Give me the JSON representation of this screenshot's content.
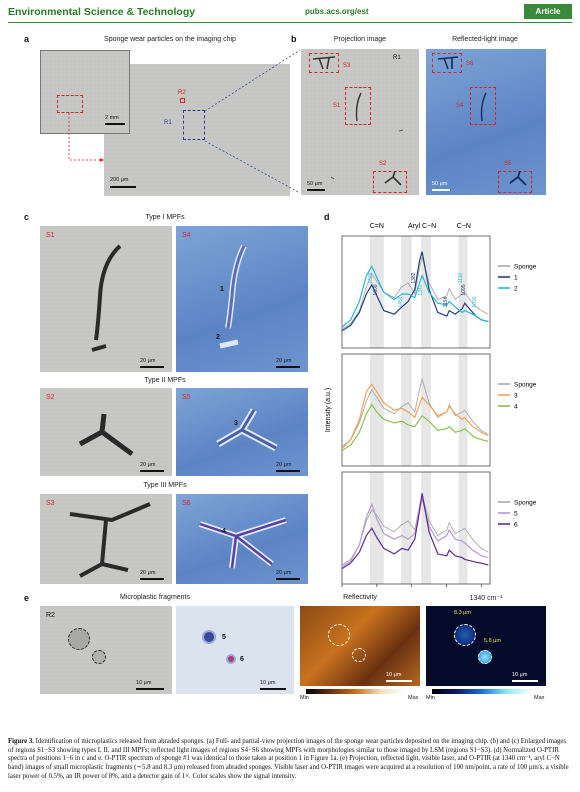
{
  "header": {
    "journal": "Environmental Science & Technology",
    "url": "pubs.acs.org/est",
    "type": "Article"
  },
  "panel_a": {
    "label": "a",
    "title": "Sponge wear particles on the imaging chip",
    "scale_inset": "2 mm",
    "scale_main": "200 μm",
    "r1": "R1",
    "r2": "R2"
  },
  "panel_b": {
    "label": "b",
    "title_left": "Projection image",
    "title_right": "Reflected-light image",
    "r1": "R1",
    "s1": "S1",
    "s2": "S2",
    "s3": "S3",
    "s4": "S4",
    "s5": "S5",
    "s6": "S6",
    "scale": "50 μm"
  },
  "panel_c": {
    "label": "c",
    "type1": "Type I MPFs",
    "type2": "Type II MPFs",
    "type3": "Type III MPFs",
    "s1": "S1",
    "s2": "S2",
    "s3": "S3",
    "s4": "S4",
    "s5": "S5",
    "s6": "S6",
    "scale": "20 μm",
    "p1": "1",
    "p2": "2",
    "p3": "3",
    "p4": "4"
  },
  "panel_d": {
    "label": "d"
  },
  "panel_e": {
    "label": "e",
    "title_left": "Microplastic fragments",
    "title_mid": "Reflectivity",
    "title_right": "1340 cm⁻¹",
    "r2": "R2",
    "p5": "5",
    "p6": "6",
    "scale": "10 μm",
    "d1": "8.3 μm",
    "d2": "5.8 μm",
    "min": "Min",
    "max": "Max"
  },
  "chart_data": {
    "type": "line",
    "xlabel": "Wavenumber (cm⁻¹)",
    "ylabel": "Intensity (a.u.)",
    "xlim": [
      1800,
      950
    ],
    "x_ticks": [
      1800,
      1600,
      1400,
      1200,
      1000
    ],
    "top_labels": [
      "C=N",
      "Aryl C−N",
      "C−N"
    ],
    "bands": [
      [
        1640,
        1560
      ],
      [
        1460,
        1400
      ],
      [
        1345,
        1290
      ],
      [
        1130,
        1080
      ]
    ],
    "panels": [
      {
        "legend": [
          "Sponge",
          "1",
          "2"
        ],
        "colors": [
          "#a9a9a9",
          "#1f3f7a",
          "#29b6d6"
        ],
        "x": [
          1800,
          1750,
          1700,
          1660,
          1629,
          1600,
          1560,
          1500,
          1456,
          1420,
          1382,
          1355,
          1340,
          1300,
          1250,
          1198,
          1184,
          1150,
          1110,
          1095,
          1050,
          1030,
          1000,
          960
        ],
        "series": [
          {
            "values": [
              0.12,
              0.18,
              0.32,
              0.58,
              0.72,
              0.64,
              0.52,
              0.46,
              0.58,
              0.62,
              0.5,
              0.78,
              0.9,
              0.62,
              0.44,
              0.48,
              0.56,
              0.44,
              0.5,
              0.52,
              0.4,
              0.36,
              0.32,
              0.28
            ]
          },
          {
            "values": [
              0.1,
              0.16,
              0.3,
              0.5,
              0.6,
              0.48,
              0.32,
              0.28,
              0.36,
              0.42,
              0.55,
              0.86,
              0.96,
              0.55,
              0.3,
              0.26,
              0.32,
              0.28,
              0.34,
              0.4,
              0.3,
              0.26,
              0.22,
              0.2
            ]
          },
          {
            "values": [
              0.14,
              0.22,
              0.42,
              0.7,
              0.8,
              0.68,
              0.52,
              0.44,
              0.5,
              0.5,
              0.46,
              0.62,
              0.7,
              0.52,
              0.4,
              0.38,
              0.42,
              0.36,
              0.3,
              0.32,
              0.28,
              0.26,
              0.22,
              0.2
            ]
          }
        ],
        "peaks": [
          "1629",
          "1600",
          "1456",
          "1382",
          "1340",
          "1198",
          "1110",
          "1095",
          "1030"
        ]
      },
      {
        "legend": [
          "Sponge",
          "3",
          "4"
        ],
        "colors": [
          "#a9a9a9",
          "#f2a35a",
          "#8cc152"
        ],
        "x": [
          1800,
          1750,
          1700,
          1660,
          1629,
          1600,
          1560,
          1500,
          1456,
          1420,
          1382,
          1355,
          1340,
          1300,
          1250,
          1198,
          1184,
          1150,
          1110,
          1095,
          1050,
          1030,
          1000,
          960
        ],
        "series": [
          {
            "values": [
              0.12,
              0.2,
              0.38,
              0.62,
              0.74,
              0.66,
              0.54,
              0.48,
              0.56,
              0.6,
              0.5,
              0.74,
              0.86,
              0.6,
              0.44,
              0.5,
              0.58,
              0.46,
              0.5,
              0.52,
              0.4,
              0.36,
              0.3,
              0.26
            ]
          },
          {
            "values": [
              0.1,
              0.2,
              0.42,
              0.72,
              0.8,
              0.72,
              0.6,
              0.52,
              0.54,
              0.5,
              0.44,
              0.58,
              0.66,
              0.58,
              0.46,
              0.5,
              0.56,
              0.48,
              0.42,
              0.44,
              0.34,
              0.32,
              0.28,
              0.24
            ]
          },
          {
            "values": [
              0.08,
              0.14,
              0.28,
              0.48,
              0.58,
              0.5,
              0.42,
              0.38,
              0.4,
              0.36,
              0.34,
              0.42,
              0.46,
              0.4,
              0.3,
              0.32,
              0.34,
              0.28,
              0.3,
              0.32,
              0.24,
              0.22,
              0.2,
              0.18
            ]
          }
        ]
      },
      {
        "legend": [
          "Sponge",
          "5",
          "6"
        ],
        "colors": [
          "#a9a9a9",
          "#b59ad6",
          "#5b2d8c"
        ],
        "x": [
          1800,
          1750,
          1700,
          1660,
          1629,
          1600,
          1560,
          1500,
          1456,
          1420,
          1382,
          1355,
          1340,
          1300,
          1250,
          1198,
          1184,
          1150,
          1110,
          1095,
          1050,
          1030,
          1000,
          960
        ],
        "series": [
          {
            "values": [
              0.12,
              0.18,
              0.34,
              0.6,
              0.72,
              0.66,
              0.54,
              0.48,
              0.56,
              0.6,
              0.5,
              0.76,
              0.88,
              0.6,
              0.44,
              0.5,
              0.58,
              0.46,
              0.5,
              0.52,
              0.4,
              0.36,
              0.3,
              0.26
            ]
          },
          {
            "values": [
              0.1,
              0.16,
              0.34,
              0.64,
              0.78,
              0.62,
              0.46,
              0.4,
              0.44,
              0.4,
              0.46,
              0.74,
              0.84,
              0.54,
              0.38,
              0.44,
              0.5,
              0.4,
              0.38,
              0.36,
              0.28,
              0.26,
              0.22,
              0.2
            ]
          },
          {
            "values": [
              0.08,
              0.14,
              0.26,
              0.44,
              0.52,
              0.42,
              0.3,
              0.24,
              0.3,
              0.28,
              0.4,
              0.7,
              0.9,
              0.48,
              0.24,
              0.22,
              0.28,
              0.22,
              0.2,
              0.18,
              0.16,
              0.15,
              0.14,
              0.12
            ]
          }
        ]
      }
    ]
  },
  "caption": {
    "lead": "Figure 3.",
    "text": "Identification of microplastics released from abraded sponges. (a) Full- and partial-view projection images of the sponge wear particles deposited on the imaging chip. (b) and (c) Enlarged images of regions S1−S3 showing types I, II, and III MPFs; reflected light images of regions S4−S6 showing MPFs with morphologies similar to those imaged by LSM (regions S1−S3). (d) Normalized O-PTIR spectra of positions 1−6 in c and e. O-PTIR spectrum of sponge #1 was identical to those taken at position 1 in Figure 1a. (e) Projection, reflected light, visible laser, and O-PTIR (at 1340 cm⁻¹, aryl C−N band) images of small microplastic fragments (∼5.8 and 8.3 μm) released from abraded sponges. Visible laser and O-PTIR images were acquired at a resolution of 100 nm/point, a rate of 100 μm/s, a visible laser power of 0.5%, an IR power of 8%, and a detector gain of 1×. Color scales show the signal intensity."
  }
}
